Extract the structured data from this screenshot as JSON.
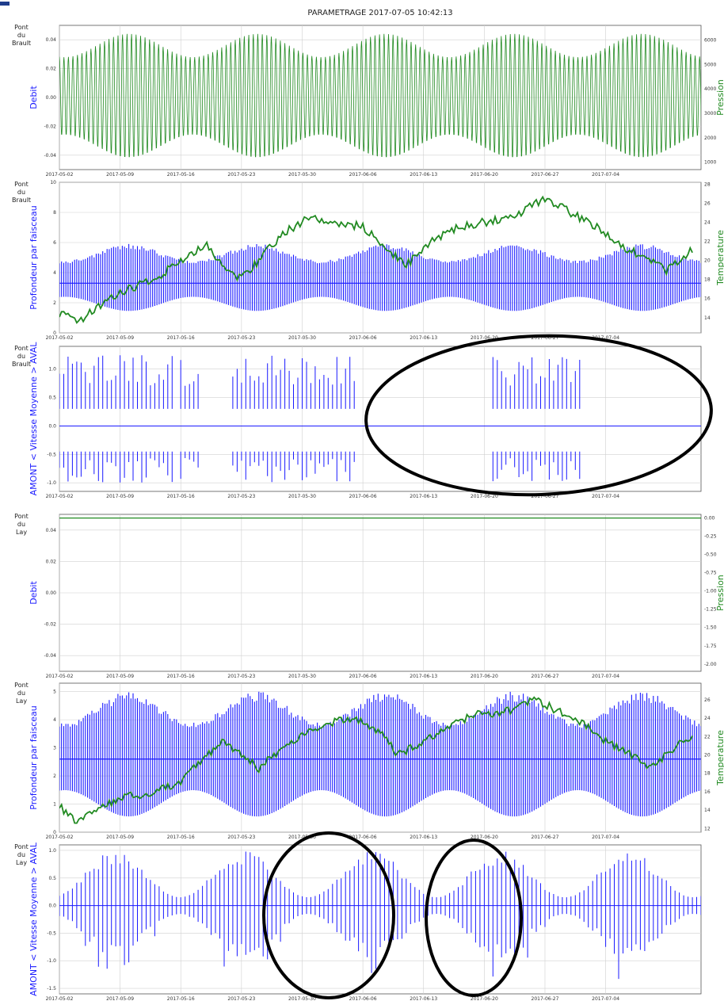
{
  "figure_title": "PARAMETRAGE 2017-07-05 10:42:13",
  "colors": {
    "primary": "#1a1aff",
    "secondary": "#218a21",
    "annotation": "#000000"
  },
  "chart_data": [
    {
      "id": "p1",
      "type": "line",
      "station": "Pont du Brault",
      "ylabel": "Debit",
      "ylim": [
        -0.05,
        0.05
      ],
      "yticks": [
        "0.04",
        "0.02",
        "0.00",
        "-0.02",
        "-0.04"
      ],
      "ytick_values": [
        0.04,
        0.02,
        0,
        -0.02,
        -0.04
      ],
      "y2label": "Pression",
      "y2lim": [
        700,
        6600
      ],
      "y2ticks": [
        "6000",
        "5000",
        "4000",
        "3000",
        "2000",
        "1000"
      ],
      "y2tick_values": [
        6000,
        5000,
        4000,
        3000,
        2000,
        1000
      ],
      "xticks": [
        "2017-05-02",
        "2017-05-09",
        "2017-05-16",
        "2017-05-23",
        "2017-05-30",
        "2017-06-06",
        "2017-06-13",
        "2017-06-20",
        "2017-06-27",
        "2017-07-04"
      ],
      "grid": true,
      "series": [
        {
          "axis": "right",
          "color": "secondary",
          "pattern": "tidal",
          "center": 3700,
          "amp_min": 1600,
          "amp_max": 2550,
          "period_days": 0.52
        }
      ]
    },
    {
      "id": "p2",
      "type": "line",
      "station": "Pont du Brault",
      "ylabel": "Profondeur par faisceau",
      "ylim": [
        0,
        10
      ],
      "yticks": [
        "10",
        "8",
        "6",
        "4",
        "2",
        "0"
      ],
      "ytick_values": [
        10,
        8,
        6,
        4,
        2,
        0
      ],
      "y2label": "Temperature",
      "y2lim": [
        12.4,
        28.2
      ],
      "y2ticks": [
        "28",
        "26",
        "24",
        "22",
        "20",
        "18",
        "16",
        "14"
      ],
      "y2tick_values": [
        28,
        26,
        24,
        22,
        20,
        18,
        16,
        14
      ],
      "xticks": [
        "2017-05-02",
        "2017-05-09",
        "2017-05-16",
        "2017-05-23",
        "2017-05-30",
        "2017-06-06",
        "2017-06-13",
        "2017-06-20",
        "2017-06-27",
        "2017-07-04"
      ],
      "grid": true,
      "series": [
        {
          "axis": "left",
          "color": "primary",
          "pattern": "depth",
          "center": 3.5,
          "amp_min": 1.3,
          "amp_max": 2.4,
          "baseline": 3.3
        },
        {
          "axis": "right",
          "color": "secondary",
          "pattern": "temperature",
          "points": [
            [
              0,
              14.5
            ],
            [
              2,
              13.5
            ],
            [
              5,
              15.5
            ],
            [
              8,
              17
            ],
            [
              11,
              18
            ],
            [
              14,
              20
            ],
            [
              17,
              21.5
            ],
            [
              19,
              19
            ],
            [
              21,
              18
            ],
            [
              23,
              20
            ],
            [
              26,
              23
            ],
            [
              29,
              24.5
            ],
            [
              32,
              24
            ],
            [
              35,
              23.5
            ],
            [
              38,
              21
            ],
            [
              40,
              19.5
            ],
            [
              43,
              22
            ],
            [
              46,
              23.5
            ],
            [
              49,
              24
            ],
            [
              52,
              24.5
            ],
            [
              56,
              26.5
            ],
            [
              59,
              25
            ],
            [
              62,
              23.5
            ],
            [
              65,
              21.5
            ],
            [
              67,
              20.5
            ],
            [
              70,
              19
            ],
            [
              72,
              20.5
            ],
            [
              73,
              21
            ]
          ]
        }
      ]
    },
    {
      "id": "p3",
      "type": "scatter",
      "station": "Pont du Brault",
      "ylabel": "AMONT < Vitesse Moyenne > AVAL",
      "ylim": [
        -1.15,
        1.4
      ],
      "yticks": [
        "1.0",
        "0.5",
        "0.0",
        "-0.5",
        "-1.0"
      ],
      "ytick_values": [
        1.0,
        0.5,
        0,
        -0.5,
        -1.0
      ],
      "xticks": [
        "2017-05-02",
        "2017-05-09",
        "2017-05-16",
        "2017-05-23",
        "2017-05-30",
        "2017-06-06",
        "2017-06-13",
        "2017-06-20",
        "2017-06-27",
        "2017-07-04"
      ],
      "grid": true,
      "zero_line": true,
      "series": [
        {
          "axis": "left",
          "color": "primary",
          "pattern": "velocity_sparse",
          "active_ranges": [
            [
              0,
              13
            ],
            [
              14,
              16
            ],
            [
              20,
              34
            ],
            [
              50,
              58
            ],
            [
              58,
              60
            ]
          ],
          "amp_min": 0.7,
          "amp_max": 1.25
        }
      ],
      "annotations": [
        {
          "type": "ellipse"
        }
      ]
    },
    {
      "id": "p4",
      "type": "line",
      "station": "Pont du Lay",
      "ylabel": "Debit",
      "ylim": [
        -0.05,
        0.05
      ],
      "yticks": [
        "0.04",
        "0.02",
        "0.00",
        "-0.02",
        "-0.04"
      ],
      "ytick_values": [
        0.04,
        0.02,
        0,
        -0.02,
        -0.04
      ],
      "y2label": "Pression",
      "y2lim": [
        -2.1,
        0.05
      ],
      "y2ticks": [
        "0.00",
        "-0.25",
        "-0.50",
        "-0.75",
        "-1.00",
        "-1.25",
        "-1.50",
        "-1.75",
        "-2.00"
      ],
      "y2tick_values": [
        0,
        -0.25,
        -0.5,
        -0.75,
        -1.0,
        -1.25,
        -1.5,
        -1.75,
        -2.0
      ],
      "xticks": [
        "2017-05-02",
        "2017-05-09",
        "2017-05-16",
        "2017-05-23",
        "2017-05-30",
        "2017-06-06",
        "2017-06-13",
        "2017-06-20",
        "2017-06-27",
        "2017-07-04"
      ],
      "grid": true,
      "series": [
        {
          "axis": "right",
          "color": "secondary",
          "pattern": "flat",
          "value": 0.0
        }
      ]
    },
    {
      "id": "p5",
      "type": "line",
      "station": "Pont du Lay",
      "ylabel": "Profondeur par faisceau",
      "ylim": [
        0,
        5.3
      ],
      "yticks": [
        "5",
        "4",
        "3",
        "2",
        "1",
        "0"
      ],
      "ytick_values": [
        5,
        4,
        3,
        2,
        1,
        0
      ],
      "y2label": "Temperature",
      "y2lim": [
        11.6,
        27.8
      ],
      "y2ticks": [
        "26",
        "24",
        "22",
        "20",
        "18",
        "16",
        "14",
        "12"
      ],
      "y2tick_values": [
        26,
        24,
        22,
        20,
        18,
        16,
        14,
        12
      ],
      "xticks": [
        "2017-05-02",
        "2017-05-09",
        "2017-05-16",
        "2017-05-23",
        "2017-05-30",
        "2017-06-06",
        "2017-06-13",
        "2017-06-20",
        "2017-06-27",
        "2017-07-04"
      ],
      "grid": true,
      "series": [
        {
          "axis": "left",
          "color": "primary",
          "pattern": "depth",
          "center": 2.6,
          "amp_min": 1.3,
          "amp_max": 2.4,
          "baseline": 2.6
        },
        {
          "axis": "right",
          "color": "secondary",
          "pattern": "temperature",
          "points": [
            [
              0,
              14.5
            ],
            [
              2,
              12.5
            ],
            [
              5,
              14.5
            ],
            [
              8,
              15.5
            ],
            [
              11,
              16
            ],
            [
              14,
              17
            ],
            [
              17,
              20
            ],
            [
              19,
              21.5
            ],
            [
              21,
              20
            ],
            [
              23,
              18.5
            ],
            [
              26,
              21
            ],
            [
              29,
              22.5
            ],
            [
              31,
              23.5
            ],
            [
              34,
              24
            ],
            [
              37,
              22.5
            ],
            [
              39,
              20
            ],
            [
              42,
              21.5
            ],
            [
              45,
              23
            ],
            [
              48,
              24.5
            ],
            [
              51,
              24.5
            ],
            [
              55,
              26
            ],
            [
              58,
              24.5
            ],
            [
              61,
              23
            ],
            [
              63,
              21.5
            ],
            [
              66,
              20
            ],
            [
              68,
              18.5
            ],
            [
              70,
              20
            ],
            [
              72,
              21.5
            ],
            [
              73,
              22
            ]
          ]
        }
      ]
    },
    {
      "id": "p6",
      "type": "scatter",
      "station": "Pont du Lay",
      "ylabel": "AMONT < Vitesse Moyenne > AVAL",
      "ylim": [
        -1.6,
        1.1
      ],
      "yticks": [
        "1.0",
        "0.5",
        "0.0",
        "-0.5",
        "-1.0",
        "-1.5"
      ],
      "ytick_values": [
        1.0,
        0.5,
        0,
        -0.5,
        -1.0,
        -1.5
      ],
      "xticks": [
        "2017-05-02",
        "2017-05-09",
        "2017-05-16",
        "2017-05-23",
        "2017-05-30",
        "2017-06-06",
        "2017-06-13",
        "2017-06-20",
        "2017-06-27",
        "2017-07-04"
      ],
      "grid": true,
      "zero_line": true,
      "series": [
        {
          "axis": "left",
          "color": "primary",
          "pattern": "velocity_dense",
          "amp_min": 0.15,
          "amp_max": 1.0,
          "neg_extra": 0.45
        }
      ],
      "annotations": [
        {
          "type": "ellipse"
        },
        {
          "type": "ellipse"
        }
      ]
    }
  ]
}
